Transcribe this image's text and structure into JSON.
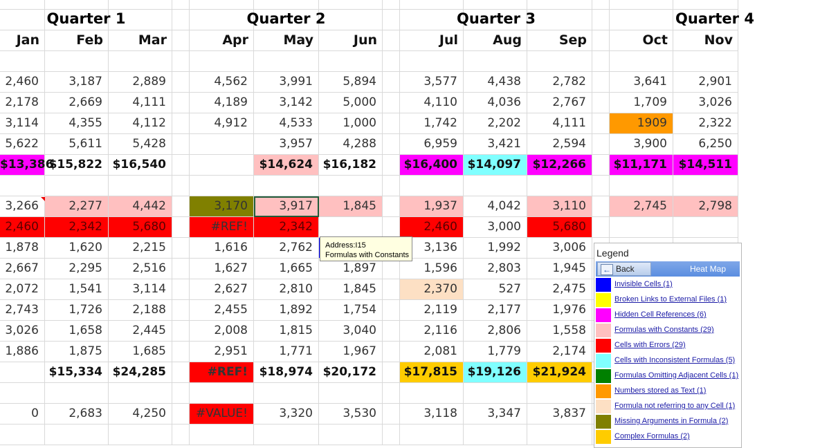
{
  "quarters": [
    "Quarter 1",
    "Quarter 2",
    "Quarter 3",
    "Quarter 4"
  ],
  "months": [
    "Jan",
    "Feb",
    "Mar",
    "Apr",
    "May",
    "Jun",
    "Jul",
    "Aug",
    "Sep",
    "Oct",
    "Nov"
  ],
  "colors": {
    "magenta": "#ff00ff",
    "pink": "#ffc0c0",
    "cyan": "#80ffff",
    "red": "#ff0000",
    "orange": "#ff9900",
    "olive": "#808000",
    "peach": "#fde0c4",
    "gold": "#ffcc00",
    "blue": "#0000ff",
    "yellow": "#ffff00",
    "green": "#008000"
  },
  "rows": [
    {
      "cells": [
        "2,460",
        "3,187",
        "2,889",
        "4,562",
        "3,991",
        "5,894",
        "3,577",
        "4,438",
        "2,782",
        "3,641",
        "2,901"
      ]
    },
    {
      "cells": [
        "2,178",
        "2,669",
        "4,111",
        "4,189",
        "3,142",
        "5,000",
        "4,110",
        "4,036",
        "2,767",
        "1,709",
        "3,026"
      ]
    },
    {
      "cells": [
        "3,114",
        "4,355",
        "4,112",
        "4,912",
        "4,533",
        "1,000",
        "1,742",
        "2,202",
        "4,111",
        "1909",
        "2,322"
      ],
      "fills": {
        "9": "orange"
      }
    },
    {
      "cells": [
        "5,622",
        "5,611",
        "5,428",
        "",
        "3,957",
        "4,288",
        "6,959",
        "3,421",
        "2,594",
        "3,900",
        "6,250"
      ]
    },
    {
      "bold": true,
      "cells": [
        "$13,386",
        "$15,822",
        "$16,540",
        "",
        "$14,624",
        "$16,182",
        "$16,400",
        "$14,097",
        "$12,266",
        "$11,171",
        "$14,511"
      ],
      "fills": {
        "0": "magenta",
        "4": "pink",
        "6": "magenta",
        "7": "cyan",
        "8": "magenta",
        "9": "magenta",
        "10": "magenta"
      }
    },
    {
      "cells": [
        "",
        "",
        "",
        "",
        "",
        "",
        "",
        "",
        "",
        "",
        ""
      ]
    },
    {
      "cells": [
        "3,266",
        "2,277",
        "4,442",
        "3,170",
        "3,917",
        "1,845",
        "1,937",
        "4,042",
        "3,110",
        "2,745",
        "2,798"
      ],
      "fills": {
        "1": "pink",
        "2": "pink",
        "3": "olive",
        "4": "pink",
        "5": "pink",
        "6": "pink",
        "8": "pink",
        "9": "pink",
        "10": "pink"
      }
    },
    {
      "cells": [
        "2,460",
        "2,342",
        "5,680",
        "#REF!",
        "2,342",
        "",
        "2,460",
        "3,000",
        "5,680",
        "",
        ""
      ],
      "fills": {
        "0": "red",
        "1": "red",
        "2": "red",
        "3": "red",
        "4": "red",
        "6": "red",
        "8": "red"
      }
    },
    {
      "cells": [
        "1,878",
        "1,620",
        "2,215",
        "1,616",
        "2,762",
        "",
        "3,136",
        "1,992",
        "3,006",
        "",
        ""
      ],
      "fills": {
        "5": "blue"
      }
    },
    {
      "cells": [
        "2,667",
        "2,295",
        "2,516",
        "1,627",
        "1,665",
        "1,897",
        "1,596",
        "2,803",
        "1,945",
        "",
        ""
      ]
    },
    {
      "cells": [
        "2,072",
        "1,541",
        "3,114",
        "2,627",
        "2,810",
        "1,845",
        "2,370",
        "527",
        "2,475",
        "",
        ""
      ],
      "fills": {
        "6": "peach"
      }
    },
    {
      "cells": [
        "2,743",
        "1,726",
        "2,188",
        "2,455",
        "1,892",
        "1,754",
        "2,119",
        "2,177",
        "1,976",
        "",
        ""
      ]
    },
    {
      "cells": [
        "3,026",
        "1,658",
        "2,445",
        "2,008",
        "1,815",
        "3,040",
        "2,116",
        "2,806",
        "1,558",
        "",
        ""
      ]
    },
    {
      "cells": [
        "1,886",
        "1,875",
        "1,685",
        "2,951",
        "1,771",
        "1,967",
        "2,081",
        "1,779",
        "2,174",
        "",
        ""
      ]
    },
    {
      "bold": true,
      "cells": [
        "",
        "$15,334",
        "$24,285",
        "#REF!",
        "$18,974",
        "$20,172",
        "$17,815",
        "$19,126",
        "$21,924",
        "",
        ""
      ],
      "fills": {
        "3": "red",
        "6": "gold",
        "7": "cyan",
        "8": "gold"
      }
    },
    {
      "cells": [
        "",
        "",
        "",
        "",
        "",
        "",
        "",
        "",
        "",
        "",
        ""
      ]
    },
    {
      "cells": [
        "0",
        "2,683",
        "4,250",
        "#VALUE!",
        "3,320",
        "3,530",
        "3,118",
        "3,347",
        "3,837",
        "",
        ""
      ],
      "fills": {
        "3": "red"
      }
    }
  ],
  "tooltip": {
    "line1": "Address:I15",
    "line2": "Formulas with Constants"
  },
  "legend": {
    "title": "Legend",
    "back_label": "Back",
    "heatmap_label": "Heat Map",
    "items": [
      {
        "label": "Invisible Cells (1)",
        "color": "#0000ff"
      },
      {
        "label": "Broken Links to External Files (1)",
        "color": "#ffff00"
      },
      {
        "label": "Hidden Cell References (6)",
        "color": "#ff00ff"
      },
      {
        "label": "Formulas with Constants (29)",
        "color": "#ffc0c0"
      },
      {
        "label": "Cells with Errors (29)",
        "color": "#ff0000"
      },
      {
        "label": "Cells with Inconsistent Formulas (5)",
        "color": "#80ffff"
      },
      {
        "label": "Formulas Omitting Adjacent Cells (1)",
        "color": "#008000"
      },
      {
        "label": "Numbers stored as Text (1)",
        "color": "#ff9900"
      },
      {
        "label": "Formula not referring to any Cell (1)",
        "color": "#fde0c4"
      },
      {
        "label": "Missing Arguments in Formula (2)",
        "color": "#808000"
      },
      {
        "label": "Complex Formulas (2)",
        "color": "#ffcc00"
      }
    ]
  }
}
